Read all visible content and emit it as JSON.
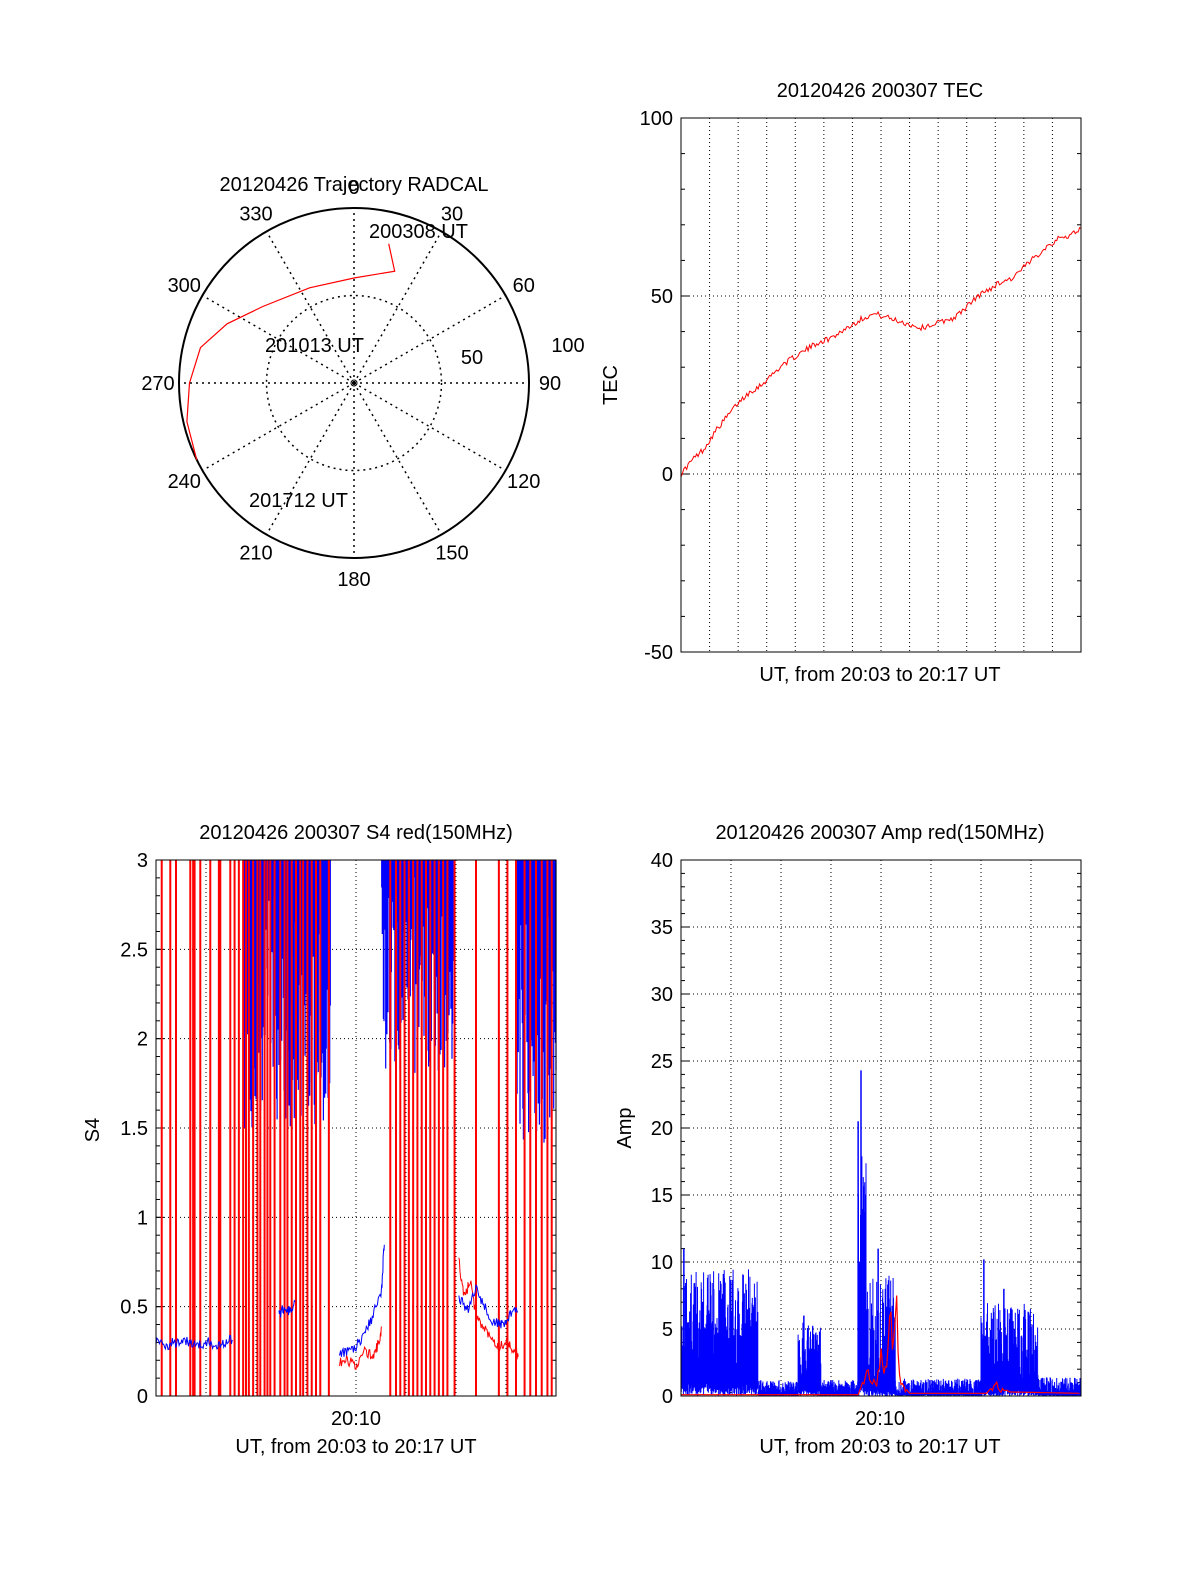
{
  "colors": {
    "red": "#ff0000",
    "blue": "#0000ff",
    "axis": "#000000",
    "grid": "#000000"
  },
  "chart_data": [
    {
      "id": "trajectory",
      "type": "polar",
      "title": "20120426 Trajectory RADCAL",
      "azimuth_labels": [
        "0",
        "30",
        "60",
        "90",
        "120",
        "150",
        "180",
        "210",
        "240",
        "270",
        "300",
        "330"
      ],
      "radial_labels": [
        "50",
        "100"
      ],
      "zenith_rings": [
        50
      ],
      "grid": true,
      "series": [
        {
          "color": "red",
          "points": [
            {
              "az": 14,
              "zen": 82
            },
            {
              "az": 20,
              "zen": 68
            },
            {
              "az": 0,
              "zen": 60
            },
            {
              "az": 335,
              "zen": 60
            },
            {
              "az": 310,
              "zen": 68
            },
            {
              "az": 295,
              "zen": 80
            },
            {
              "az": 283,
              "zen": 90
            },
            {
              "az": 270,
              "zen": 94
            },
            {
              "az": 257,
              "zen": 98
            },
            {
              "az": 244,
              "zen": 100
            }
          ]
        }
      ],
      "annotations": [
        {
          "text": "200308 UT",
          "az": 14,
          "zen": 82
        },
        {
          "text": "201013 UT",
          "az": 325,
          "zen": 42
        },
        {
          "text": "201712 UT",
          "az": 235,
          "zen": 95
        }
      ]
    },
    {
      "id": "tec",
      "type": "line",
      "title": "20120426 200307 TEC",
      "xlabel": "UT, from 20:03 to 20:17 UT",
      "ylabel": "TEC",
      "ylim": [
        -50,
        100
      ],
      "yticks": [
        "100",
        "50",
        "0",
        "-50"
      ],
      "xlim": [
        0,
        14
      ],
      "grid": true,
      "series": [
        {
          "color": "red",
          "x": [
            0,
            0.4,
            0.8,
            1.2,
            1.6,
            2.0,
            2.4,
            2.8,
            3.2,
            3.6,
            4.0,
            4.4,
            4.8,
            5.2,
            5.6,
            6.0,
            6.4,
            6.8,
            7.2,
            7.6,
            8.0,
            8.4,
            8.8,
            9.2,
            9.6,
            10.0,
            10.4,
            10.8,
            11.2,
            11.6,
            12.0,
            12.4,
            12.8,
            13.2,
            13.6,
            14.0
          ],
          "y": [
            0,
            4,
            7,
            12,
            16,
            20,
            23,
            25,
            28,
            31,
            33,
            35,
            37,
            38,
            40,
            42,
            44,
            45,
            44,
            43,
            42,
            41,
            42,
            43,
            44,
            47,
            50,
            52,
            54,
            55,
            58,
            61,
            64,
            66,
            67,
            69
          ]
        }
      ]
    },
    {
      "id": "s4",
      "type": "line",
      "title": "20120426 200307 S4 red(150MHz)",
      "xlabel": "UT, from 20:03 to 20:17 UT",
      "ylabel": "S4",
      "ylim": [
        0,
        3
      ],
      "yticks": [
        "3",
        "2.5",
        "2",
        "1.5",
        "1",
        "0.5",
        "0"
      ],
      "xtick_label": "20:10",
      "xtick_at": 7,
      "xlim": [
        0,
        14
      ],
      "grid": true,
      "series": [
        {
          "color": "red",
          "spikes": [
            0.2,
            0.5,
            0.7,
            1.2,
            1.3,
            1.35,
            1.55,
            1.9,
            2.2,
            2.25,
            2.6,
            2.75,
            2.9,
            3.05,
            3.15,
            3.25,
            3.4,
            3.55,
            3.65,
            3.8,
            3.9,
            4.0,
            4.15,
            4.35,
            4.5,
            4.6,
            4.75,
            4.9,
            5.05,
            5.15,
            5.3,
            5.45,
            5.6,
            5.75,
            6.05,
            8.2,
            8.4,
            8.55,
            8.7,
            8.85,
            9.0,
            9.15,
            9.3,
            9.45,
            9.6,
            9.75,
            9.9,
            10.05,
            10.2,
            10.45,
            11.2,
            12.0,
            12.3,
            12.6,
            12.9,
            13.1,
            13.3,
            13.5,
            13.7,
            13.85
          ],
          "segments": [
            {
              "x": [
                6.4,
                6.7,
                7.0,
                7.3,
                7.6,
                7.8,
                7.9
              ],
              "y": [
                0.18,
                0.2,
                0.17,
                0.25,
                0.22,
                0.3,
                0.38
              ]
            },
            {
              "x": [
                10.6,
                10.8,
                11.0,
                11.2,
                11.5,
                11.8,
                12.0,
                12.3,
                12.5,
                12.7
              ],
              "y": [
                0.75,
                0.55,
                0.65,
                0.45,
                0.38,
                0.32,
                0.28,
                0.3,
                0.26,
                0.22
              ]
            }
          ]
        },
        {
          "color": "blue",
          "segments": [
            {
              "x": [
                0,
                0.3,
                0.6,
                0.9,
                1.2,
                1.5,
                1.8,
                2.1,
                2.4,
                2.7
              ],
              "y": [
                0.3,
                0.28,
                0.3,
                0.29,
                0.31,
                0.28,
                0.3,
                0.29,
                0.3,
                0.32
              ]
            },
            {
              "x": [
                4.3,
                4.5,
                4.7,
                4.9
              ],
              "y": [
                0.45,
                0.5,
                0.47,
                0.52
              ]
            },
            {
              "x": [
                6.4,
                6.7,
                7.0,
                7.3,
                7.6,
                7.9,
                8.0
              ],
              "y": [
                0.22,
                0.25,
                0.28,
                0.35,
                0.45,
                0.6,
                0.9
              ]
            },
            {
              "x": [
                10.6,
                10.9,
                11.2,
                11.5,
                11.8,
                12.1,
                12.4,
                12.7
              ],
              "y": [
                0.55,
                0.48,
                0.6,
                0.5,
                0.42,
                0.4,
                0.45,
                0.5
              ]
            }
          ],
          "bands": [
            {
              "from": 3.1,
              "to": 6.1,
              "low": 1.5,
              "high": 3
            },
            {
              "from": 7.9,
              "to": 10.4,
              "low": 1.8,
              "high": 3
            },
            {
              "from": 12.6,
              "to": 14.0,
              "low": 1.4,
              "high": 3
            }
          ]
        }
      ]
    },
    {
      "id": "amp",
      "type": "line",
      "title": "20120426 200307 Amp red(150MHz)",
      "xlabel": "UT, from 20:03 to 20:17 UT",
      "ylabel": "Amp",
      "ylim": [
        0,
        40
      ],
      "yticks": [
        "40",
        "35",
        "30",
        "25",
        "20",
        "15",
        "10",
        "5",
        "0"
      ],
      "xtick_label": "20:10",
      "xtick_at": 7,
      "xlim": [
        0,
        14
      ],
      "grid": true,
      "series": [
        {
          "color": "blue",
          "bands": [
            {
              "from": 0,
              "to": 2.7,
              "low": 1,
              "high": 9.5
            },
            {
              "from": 2.7,
              "to": 4.1,
              "low": 0.1,
              "high": 1.2
            },
            {
              "from": 4.1,
              "to": 4.9,
              "low": 0.5,
              "high": 5.5
            },
            {
              "from": 4.9,
              "to": 6.2,
              "low": 0.1,
              "high": 1.2
            },
            {
              "from": 6.2,
              "to": 6.5,
              "low": 1,
              "high": 18
            },
            {
              "from": 6.5,
              "to": 7.5,
              "low": 0.5,
              "high": 9
            },
            {
              "from": 7.5,
              "to": 10.5,
              "low": 0.1,
              "high": 1.3
            },
            {
              "from": 10.5,
              "to": 12.5,
              "low": 0.5,
              "high": 7
            },
            {
              "from": 12.5,
              "to": 14.0,
              "low": 0.1,
              "high": 1.4
            }
          ],
          "peaks": [
            {
              "x": 6.3,
              "y": 24.3
            },
            {
              "x": 6.2,
              "y": 20.5
            },
            {
              "x": 6.45,
              "y": 15
            },
            {
              "x": 6.9,
              "y": 11
            },
            {
              "x": 0.1,
              "y": 11
            },
            {
              "x": 10.6,
              "y": 10.2
            },
            {
              "x": 11.3,
              "y": 8
            },
            {
              "x": 4.3,
              "y": 6
            }
          ]
        },
        {
          "color": "red",
          "points": [
            {
              "x": 0,
              "y": 0.1
            },
            {
              "x": 2.7,
              "y": 0.1
            },
            {
              "x": 6.2,
              "y": 0.1
            },
            {
              "x": 6.6,
              "y": 2.5
            },
            {
              "x": 6.8,
              "y": 1
            },
            {
              "x": 7.2,
              "y": 5
            },
            {
              "x": 7.5,
              "y": 8.5
            },
            {
              "x": 7.7,
              "y": 1
            },
            {
              "x": 8.0,
              "y": 0.2
            },
            {
              "x": 10.7,
              "y": 0.2
            },
            {
              "x": 11.0,
              "y": 1
            },
            {
              "x": 11.5,
              "y": 0.3
            },
            {
              "x": 14.0,
              "y": 0.2
            }
          ]
        }
      ]
    }
  ]
}
